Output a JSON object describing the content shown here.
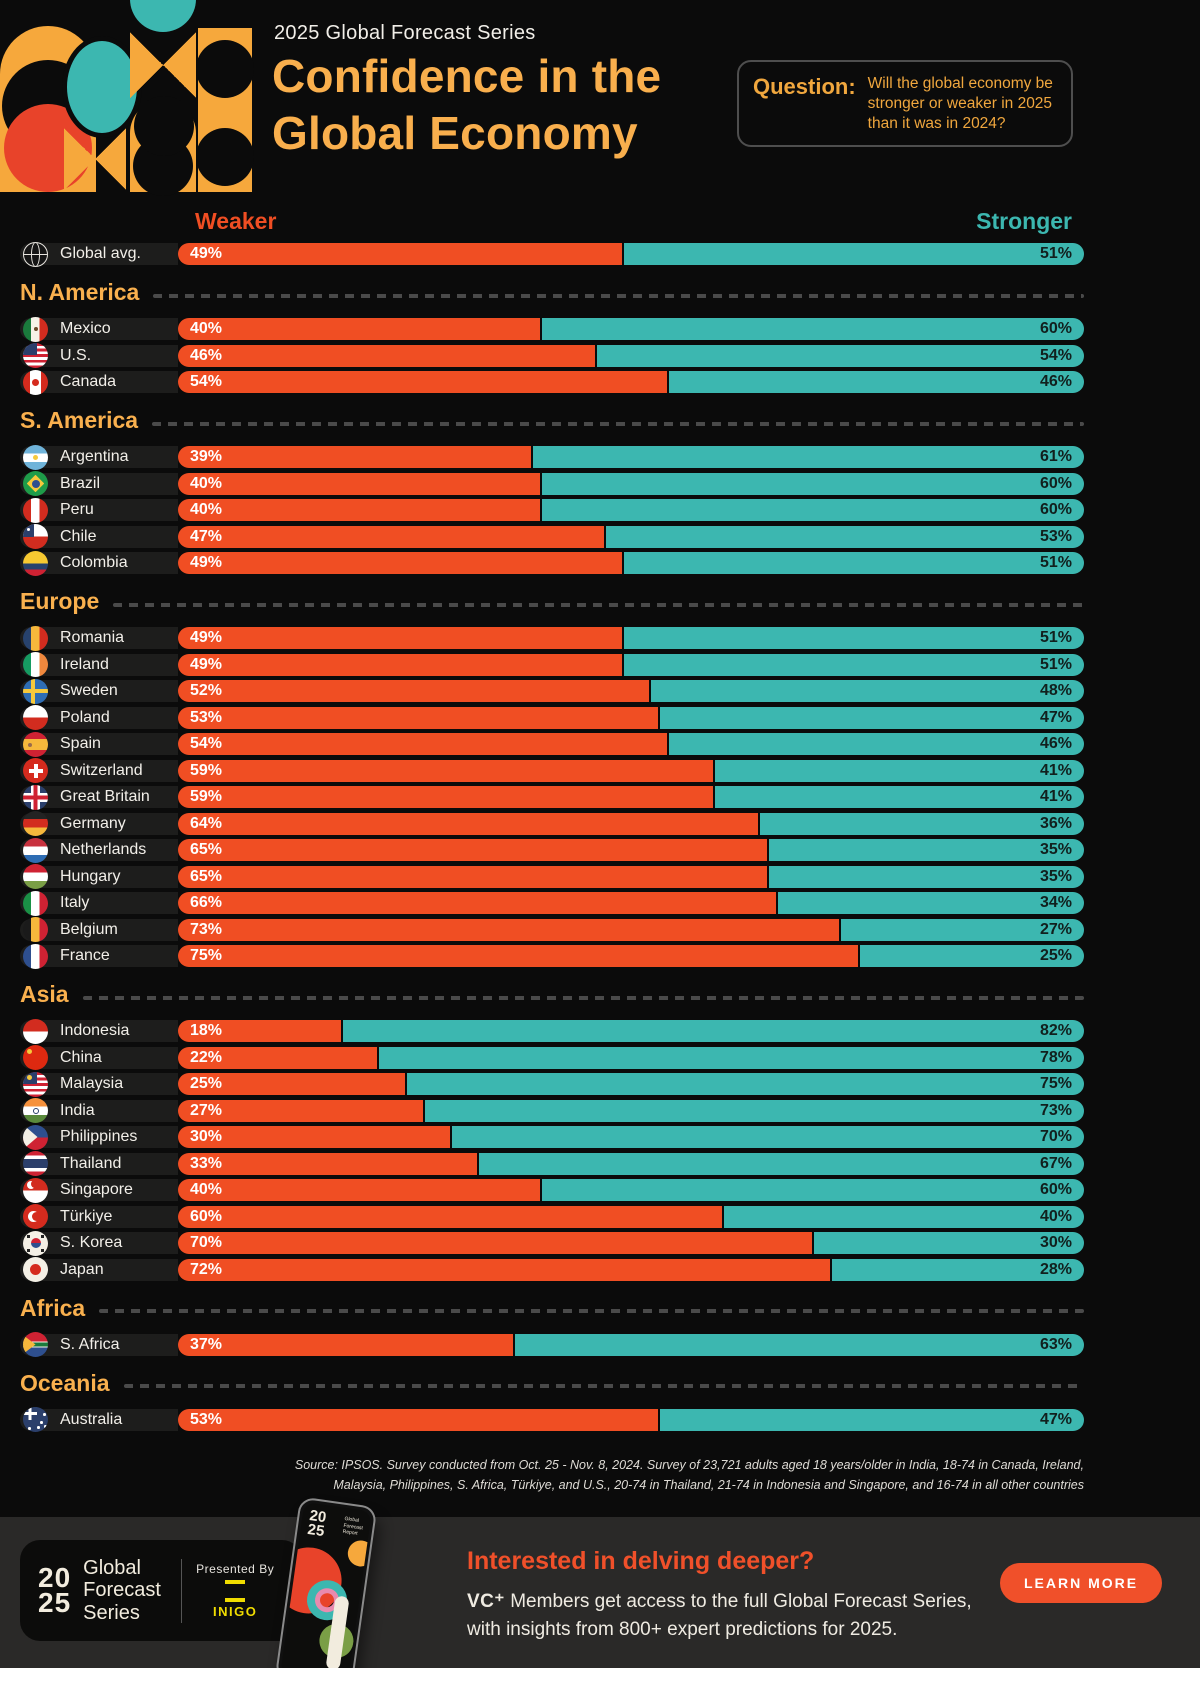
{
  "header": {
    "series": "2025 Global Forecast Series",
    "title_line1": "Confidence in the",
    "title_line2": "Global Economy",
    "question_label": "Question:",
    "question_text": "Will the global economy be stronger or weaker in 2025 than it was in 2024?"
  },
  "chart_data": {
    "type": "bar",
    "variant": "diverging-stacked-horizontal",
    "axis_left_label": "Weaker",
    "axis_right_label": "Stronger",
    "unit": "%",
    "xlim": [
      0,
      100
    ],
    "colors": {
      "weaker": "#F04E23",
      "stronger": "#3CB7B0",
      "accent": "#F9B04E"
    },
    "global": {
      "label": "Global avg.",
      "flag": "globe",
      "weaker": 49,
      "stronger": 51
    },
    "sections": [
      {
        "name": "N. America",
        "rows": [
          {
            "label": "Mexico",
            "flag": "mexico",
            "weaker": 40,
            "stronger": 60
          },
          {
            "label": "U.S.",
            "flag": "us",
            "weaker": 46,
            "stronger": 54
          },
          {
            "label": "Canada",
            "flag": "canada",
            "weaker": 54,
            "stronger": 46
          }
        ]
      },
      {
        "name": "S. America",
        "rows": [
          {
            "label": "Argentina",
            "flag": "argentina",
            "weaker": 39,
            "stronger": 61
          },
          {
            "label": "Brazil",
            "flag": "brazil",
            "weaker": 40,
            "stronger": 60
          },
          {
            "label": "Peru",
            "flag": "peru",
            "weaker": 40,
            "stronger": 60
          },
          {
            "label": "Chile",
            "flag": "chile",
            "weaker": 47,
            "stronger": 53
          },
          {
            "label": "Colombia",
            "flag": "colombia",
            "weaker": 49,
            "stronger": 51
          }
        ]
      },
      {
        "name": "Europe",
        "rows": [
          {
            "label": "Romania",
            "flag": "romania",
            "weaker": 49,
            "stronger": 51
          },
          {
            "label": "Ireland",
            "flag": "ireland",
            "weaker": 49,
            "stronger": 51
          },
          {
            "label": "Sweden",
            "flag": "sweden",
            "weaker": 52,
            "stronger": 48
          },
          {
            "label": "Poland",
            "flag": "poland",
            "weaker": 53,
            "stronger": 47
          },
          {
            "label": "Spain",
            "flag": "spain",
            "weaker": 54,
            "stronger": 46
          },
          {
            "label": "Switzerland",
            "flag": "switzerland",
            "weaker": 59,
            "stronger": 41
          },
          {
            "label": "Great Britain",
            "flag": "gb",
            "weaker": 59,
            "stronger": 41
          },
          {
            "label": "Germany",
            "flag": "germany",
            "weaker": 64,
            "stronger": 36
          },
          {
            "label": "Netherlands",
            "flag": "netherlands",
            "weaker": 65,
            "stronger": 35
          },
          {
            "label": "Hungary",
            "flag": "hungary",
            "weaker": 65,
            "stronger": 35
          },
          {
            "label": "Italy",
            "flag": "italy",
            "weaker": 66,
            "stronger": 34
          },
          {
            "label": "Belgium",
            "flag": "belgium",
            "weaker": 73,
            "stronger": 27
          },
          {
            "label": "France",
            "flag": "france",
            "weaker": 75,
            "stronger": 25
          }
        ]
      },
      {
        "name": "Asia",
        "rows": [
          {
            "label": "Indonesia",
            "flag": "indonesia",
            "weaker": 18,
            "stronger": 82
          },
          {
            "label": "China",
            "flag": "china",
            "weaker": 22,
            "stronger": 78
          },
          {
            "label": "Malaysia",
            "flag": "malaysia",
            "weaker": 25,
            "stronger": 75
          },
          {
            "label": "India",
            "flag": "india",
            "weaker": 27,
            "stronger": 73
          },
          {
            "label": "Philippines",
            "flag": "philippines",
            "weaker": 30,
            "stronger": 70
          },
          {
            "label": "Thailand",
            "flag": "thailand",
            "weaker": 33,
            "stronger": 67
          },
          {
            "label": "Singapore",
            "flag": "singapore",
            "weaker": 40,
            "stronger": 60
          },
          {
            "label": "Türkiye",
            "flag": "turkiye",
            "weaker": 60,
            "stronger": 40
          },
          {
            "label": "S. Korea",
            "flag": "skorea",
            "weaker": 70,
            "stronger": 30
          },
          {
            "label": "Japan",
            "flag": "japan",
            "weaker": 72,
            "stronger": 28
          }
        ]
      },
      {
        "name": "Africa",
        "rows": [
          {
            "label": "S. Africa",
            "flag": "safrica",
            "weaker": 37,
            "stronger": 63
          }
        ]
      },
      {
        "name": "Oceania",
        "rows": [
          {
            "label": "Australia",
            "flag": "australia",
            "weaker": 53,
            "stronger": 47
          }
        ]
      }
    ]
  },
  "source": {
    "line1": "Source: IPSOS. Survey conducted from Oct. 25 - Nov. 8, 2024. Survey of 23,721 adults aged 18 years/older in India, 18-74 in Canada, Ireland,",
    "line2": "Malaysia, Philippines, S. Africa, Türkiye, and U.S., 20-74 in Thailand, 21-74 in Indonesia and Singapore, and 16-74 in all other countries"
  },
  "footer": {
    "logo_year_top": "20",
    "logo_year_bottom": "25",
    "logo_series": "Global Forecast Series",
    "presented_by": "Presented By",
    "presenter": "INIGO",
    "phone_year_top": "20",
    "phone_year_bottom": "25",
    "phone_title": "Global Forecast Report",
    "heading": "Interested in delving deeper?",
    "body_bold": "VC⁺",
    "body_line1": " Members get access to the full Global Forecast Series,",
    "body_line2": "with insights from 800+ expert predictions for 2025.",
    "cta": "LEARN MORE"
  }
}
